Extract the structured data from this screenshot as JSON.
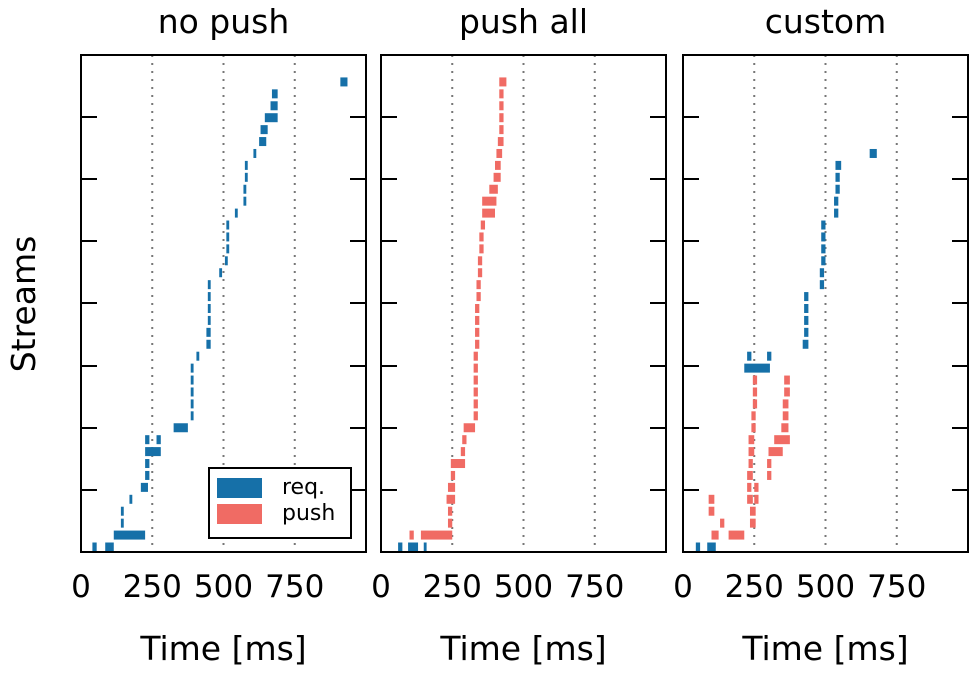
{
  "chart_data": {
    "type": "timeline",
    "ylabel": "Streams",
    "xlabel": "Time [ms]",
    "xlim": [
      0,
      1000
    ],
    "xticks": [
      0,
      250,
      500,
      750
    ],
    "xtick_labels": [
      "0",
      "250",
      "500",
      "750"
    ],
    "grid_x": [
      250,
      500,
      750
    ],
    "legend": {
      "placement": "lower-right of first panel",
      "entries": [
        {
          "name": "req.",
          "color": "#1670a8"
        },
        {
          "name": "push",
          "color": "#f06b64"
        }
      ]
    },
    "colors": {
      "req": "#1670a8",
      "push": "#f06b64"
    },
    "panels": [
      {
        "title": "no push",
        "bars": [
          [
            40,
            55,
            0,
            "req"
          ],
          [
            85,
            115,
            0,
            "req"
          ],
          [
            115,
            225,
            1,
            "req"
          ],
          [
            140,
            150,
            2,
            "req"
          ],
          [
            140,
            150,
            3,
            "req"
          ],
          [
            170,
            180,
            4,
            "req"
          ],
          [
            210,
            235,
            5,
            "req"
          ],
          [
            225,
            240,
            6,
            "req"
          ],
          [
            225,
            240,
            7,
            "req"
          ],
          [
            225,
            280,
            8,
            "req"
          ],
          [
            225,
            240,
            9,
            "req"
          ],
          [
            265,
            280,
            9,
            "req"
          ],
          [
            325,
            375,
            10,
            "req"
          ],
          [
            385,
            395,
            11,
            "req"
          ],
          [
            385,
            395,
            12,
            "req"
          ],
          [
            385,
            395,
            13,
            "req"
          ],
          [
            385,
            395,
            14,
            "req"
          ],
          [
            385,
            395,
            15,
            "req"
          ],
          [
            405,
            415,
            16,
            "req"
          ],
          [
            440,
            455,
            17,
            "req"
          ],
          [
            440,
            455,
            18,
            "req"
          ],
          [
            445,
            455,
            19,
            "req"
          ],
          [
            445,
            455,
            20,
            "req"
          ],
          [
            445,
            455,
            21,
            "req"
          ],
          [
            445,
            455,
            22,
            "req"
          ],
          [
            485,
            495,
            23,
            "req"
          ],
          [
            505,
            515,
            24,
            "req"
          ],
          [
            510,
            520,
            25,
            "req"
          ],
          [
            510,
            520,
            26,
            "req"
          ],
          [
            510,
            520,
            27,
            "req"
          ],
          [
            540,
            550,
            28,
            "req"
          ],
          [
            570,
            580,
            29,
            "req"
          ],
          [
            570,
            580,
            30,
            "req"
          ],
          [
            575,
            585,
            31,
            "req"
          ],
          [
            575,
            585,
            32,
            "req"
          ],
          [
            605,
            615,
            33,
            "req"
          ],
          [
            625,
            650,
            34,
            "req"
          ],
          [
            630,
            655,
            35,
            "req"
          ],
          [
            645,
            690,
            36,
            "req"
          ],
          [
            665,
            690,
            37,
            "req"
          ],
          [
            670,
            690,
            38,
            "req"
          ],
          [
            910,
            935,
            39,
            "req"
          ]
        ]
      },
      {
        "title": "push all",
        "bars": [
          [
            60,
            75,
            0,
            "req"
          ],
          [
            95,
            130,
            0,
            "req"
          ],
          [
            150,
            160,
            0,
            "req"
          ],
          [
            100,
            115,
            1,
            "push"
          ],
          [
            140,
            250,
            1,
            "push"
          ],
          [
            235,
            250,
            2,
            "push"
          ],
          [
            235,
            250,
            3,
            "push"
          ],
          [
            230,
            260,
            4,
            "push"
          ],
          [
            235,
            260,
            5,
            "push"
          ],
          [
            245,
            260,
            6,
            "push"
          ],
          [
            245,
            295,
            7,
            "push"
          ],
          [
            280,
            295,
            8,
            "push"
          ],
          [
            285,
            300,
            9,
            "push"
          ],
          [
            290,
            330,
            10,
            "push"
          ],
          [
            325,
            340,
            11,
            "push"
          ],
          [
            325,
            340,
            12,
            "push"
          ],
          [
            325,
            340,
            13,
            "push"
          ],
          [
            325,
            340,
            14,
            "push"
          ],
          [
            325,
            340,
            15,
            "push"
          ],
          [
            325,
            340,
            16,
            "push"
          ],
          [
            330,
            345,
            17,
            "push"
          ],
          [
            330,
            345,
            18,
            "push"
          ],
          [
            330,
            345,
            19,
            "push"
          ],
          [
            330,
            345,
            20,
            "push"
          ],
          [
            335,
            350,
            21,
            "push"
          ],
          [
            335,
            350,
            22,
            "push"
          ],
          [
            340,
            355,
            23,
            "push"
          ],
          [
            340,
            355,
            24,
            "push"
          ],
          [
            345,
            360,
            25,
            "push"
          ],
          [
            345,
            360,
            26,
            "push"
          ],
          [
            350,
            365,
            27,
            "push"
          ],
          [
            355,
            400,
            28,
            "push"
          ],
          [
            355,
            405,
            29,
            "push"
          ],
          [
            380,
            410,
            30,
            "push"
          ],
          [
            395,
            420,
            31,
            "push"
          ],
          [
            400,
            420,
            32,
            "push"
          ],
          [
            405,
            425,
            33,
            "push"
          ],
          [
            410,
            430,
            34,
            "push"
          ],
          [
            415,
            430,
            35,
            "push"
          ],
          [
            415,
            430,
            36,
            "push"
          ],
          [
            415,
            430,
            37,
            "push"
          ],
          [
            415,
            430,
            38,
            "push"
          ],
          [
            415,
            440,
            39,
            "push"
          ]
        ]
      },
      {
        "title": "custom",
        "bars": [
          [
            45,
            60,
            0,
            "req"
          ],
          [
            85,
            115,
            0,
            "req"
          ],
          [
            100,
            125,
            1,
            "push"
          ],
          [
            160,
            215,
            1,
            "push"
          ],
          [
            130,
            145,
            2,
            "push"
          ],
          [
            235,
            255,
            2,
            "push"
          ],
          [
            90,
            110,
            3,
            "push"
          ],
          [
            235,
            255,
            3,
            "push"
          ],
          [
            90,
            110,
            4,
            "push"
          ],
          [
            225,
            245,
            4,
            "push"
          ],
          [
            250,
            265,
            4,
            "push"
          ],
          [
            225,
            240,
            5,
            "push"
          ],
          [
            250,
            265,
            5,
            "push"
          ],
          [
            225,
            245,
            6,
            "push"
          ],
          [
            295,
            310,
            6,
            "push"
          ],
          [
            230,
            245,
            7,
            "push"
          ],
          [
            295,
            310,
            7,
            "push"
          ],
          [
            230,
            250,
            8,
            "push"
          ],
          [
            300,
            350,
            8,
            "push"
          ],
          [
            230,
            250,
            9,
            "push"
          ],
          [
            320,
            375,
            9,
            "push"
          ],
          [
            240,
            255,
            10,
            "push"
          ],
          [
            345,
            370,
            10,
            "push"
          ],
          [
            240,
            255,
            11,
            "push"
          ],
          [
            350,
            370,
            11,
            "push"
          ],
          [
            245,
            260,
            12,
            "push"
          ],
          [
            350,
            370,
            12,
            "push"
          ],
          [
            245,
            260,
            13,
            "push"
          ],
          [
            355,
            375,
            13,
            "push"
          ],
          [
            245,
            260,
            14,
            "push"
          ],
          [
            355,
            375,
            14,
            "push"
          ],
          [
            215,
            305,
            15,
            "req"
          ],
          [
            225,
            240,
            16,
            "req"
          ],
          [
            295,
            310,
            16,
            "req"
          ],
          [
            420,
            440,
            17,
            "req"
          ],
          [
            425,
            440,
            18,
            "req"
          ],
          [
            425,
            440,
            19,
            "req"
          ],
          [
            425,
            440,
            20,
            "req"
          ],
          [
            425,
            440,
            21,
            "req"
          ],
          [
            480,
            495,
            22,
            "req"
          ],
          [
            480,
            495,
            23,
            "req"
          ],
          [
            485,
            500,
            24,
            "req"
          ],
          [
            485,
            500,
            25,
            "req"
          ],
          [
            485,
            500,
            26,
            "req"
          ],
          [
            485,
            500,
            27,
            "req"
          ],
          [
            530,
            545,
            28,
            "req"
          ],
          [
            530,
            545,
            29,
            "req"
          ],
          [
            535,
            550,
            30,
            "req"
          ],
          [
            535,
            550,
            31,
            "req"
          ],
          [
            535,
            555,
            32,
            "req"
          ],
          [
            655,
            680,
            33,
            "req"
          ]
        ]
      }
    ]
  }
}
